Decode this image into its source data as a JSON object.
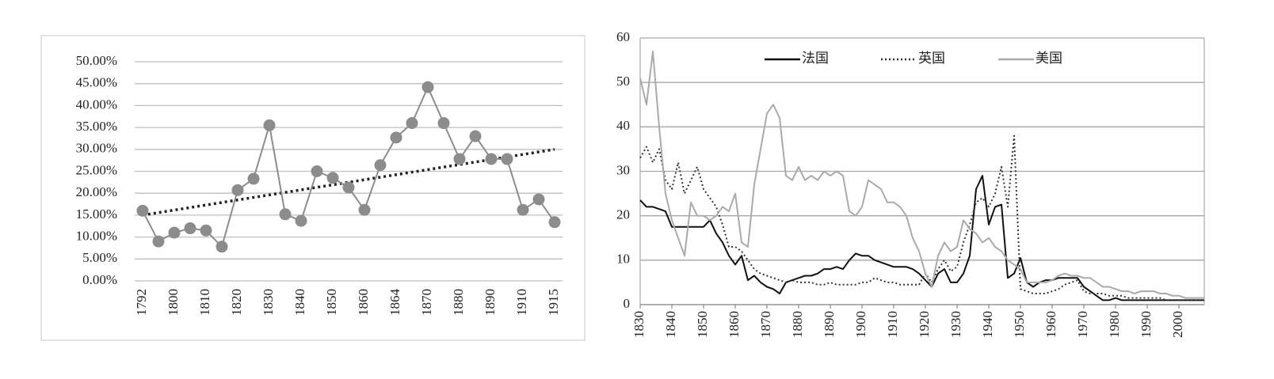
{
  "chart_data": [
    {
      "type": "line",
      "categories": [
        "1792",
        null,
        "1800",
        null,
        "1810",
        null,
        "1820",
        null,
        "1830",
        null,
        "1840",
        null,
        "1850",
        null,
        "1860",
        null,
        "1864",
        null,
        "1870",
        null,
        "1880",
        null,
        "1890",
        null,
        "1910",
        null,
        "1915"
      ],
      "series": [
        {
          "color": "#8c8c8c",
          "marker": "circle",
          "style": "solid",
          "values": [
            16,
            9,
            11,
            12,
            11.5,
            7.8,
            20.7,
            23.3,
            35.5,
            15.2,
            13.7,
            25,
            23.5,
            21.3,
            16.2,
            26.4,
            32.7,
            36,
            44.2,
            36,
            27.8,
            33,
            27.8,
            27.8,
            16.2,
            18.6,
            13.4
          ]
        }
      ],
      "trendline": {
        "values": [
          15,
          30
        ],
        "color": "#222222",
        "style": "dotted"
      },
      "ylim": [
        0,
        50
      ],
      "yticks": [
        {
          "value": 0,
          "label": "0.00%"
        },
        {
          "value": 5,
          "label": "5.00%"
        },
        {
          "value": 10,
          "label": "10.00%"
        },
        {
          "value": 15,
          "label": "15.00%"
        },
        {
          "value": 20,
          "label": "20.00%"
        },
        {
          "value": 25,
          "label": "25.00%"
        },
        {
          "value": 30,
          "label": "30.00%"
        },
        {
          "value": 35,
          "label": "35.00%"
        },
        {
          "value": 40,
          "label": "40.00%"
        },
        {
          "value": 45,
          "label": "45.00%"
        },
        {
          "value": 50,
          "label": "50.00%"
        }
      ],
      "grid": true
    },
    {
      "type": "line",
      "x": [
        1830,
        1832,
        1834,
        1836,
        1838,
        1840,
        1842,
        1844,
        1846,
        1848,
        1850,
        1852,
        1854,
        1856,
        1858,
        1860,
        1862,
        1864,
        1866,
        1868,
        1870,
        1872,
        1874,
        1876,
        1878,
        1880,
        1882,
        1884,
        1886,
        1888,
        1890,
        1892,
        1894,
        1896,
        1898,
        1900,
        1902,
        1904,
        1906,
        1908,
        1910,
        1912,
        1914,
        1916,
        1918,
        1920,
        1922,
        1924,
        1926,
        1928,
        1930,
        1932,
        1934,
        1936,
        1938,
        1940,
        1942,
        1944,
        1946,
        1948,
        1950,
        1952,
        1954,
        1956,
        1958,
        1960,
        1962,
        1964,
        1966,
        1968,
        1970,
        1972,
        1974,
        1976,
        1978,
        1980,
        1982,
        1984,
        1986,
        1988,
        1990,
        1992,
        1994,
        1996,
        1998,
        2000,
        2002,
        2004,
        2006,
        2008
      ],
      "series": [
        {
          "name": "法国",
          "color": "#111111",
          "style": "solid",
          "values": [
            23.5,
            22,
            22,
            21.5,
            21,
            17.5,
            17.5,
            17.5,
            17.5,
            17.5,
            17.5,
            19,
            16,
            14,
            11,
            9,
            11,
            5.5,
            6.5,
            5,
            4,
            3.5,
            2.5,
            5,
            5.5,
            6,
            6.5,
            6.5,
            7,
            8,
            8,
            8.5,
            8,
            10,
            11.5,
            11,
            11,
            10,
            9.5,
            9,
            8.5,
            8.5,
            8.5,
            8,
            7,
            5.5,
            4,
            7,
            8,
            5,
            5,
            7,
            11,
            26,
            29,
            18,
            22,
            22.5,
            6,
            7,
            10.5,
            5,
            4,
            5,
            5.5,
            5.5,
            6,
            6,
            6,
            6,
            4,
            3,
            2,
            1,
            1,
            1.5,
            1,
            1,
            1,
            1,
            1,
            1,
            1,
            1,
            1,
            1,
            1,
            1,
            1,
            1
          ]
        },
        {
          "name": "英国",
          "color": "#333333",
          "style": "dotted",
          "values": [
            33,
            35.5,
            32,
            35,
            28,
            26,
            32,
            25,
            28,
            31,
            26,
            24,
            22,
            18,
            13,
            13,
            12,
            10,
            8,
            7,
            6.5,
            6,
            5.5,
            5,
            5.5,
            5,
            5,
            5,
            4.5,
            4.5,
            5,
            4.5,
            4.5,
            4.5,
            4.5,
            5,
            5,
            6,
            5.5,
            5,
            5,
            4.5,
            4.5,
            4.5,
            4.5,
            7,
            5,
            8,
            10,
            7.5,
            8.5,
            14,
            18,
            23,
            24,
            22,
            25,
            31,
            22,
            38,
            3.5,
            3,
            2.5,
            2.5,
            2.5,
            3,
            3.5,
            4.5,
            5,
            5.5,
            3,
            2.5,
            2.5,
            2.5,
            2,
            2,
            2,
            1.5,
            1.5,
            1.5,
            1.5,
            1.5,
            1.5,
            1,
            1,
            1,
            1,
            1,
            1,
            1
          ]
        },
        {
          "name": "美国",
          "color": "#aaaaaa",
          "style": "solid",
          "values": [
            51,
            45,
            57,
            40,
            25,
            19,
            15,
            11,
            23,
            20,
            20,
            19,
            20,
            22,
            21,
            25,
            14,
            13,
            27,
            35,
            43,
            45,
            42,
            29,
            28,
            31,
            28,
            29,
            28,
            30,
            29,
            30,
            29,
            21,
            20,
            22,
            28,
            27,
            26,
            23,
            23,
            22,
            20,
            15,
            12,
            7,
            4,
            11,
            14,
            12,
            13,
            19,
            17,
            16,
            14,
            15,
            13,
            12,
            10,
            9,
            8,
            5,
            5,
            5,
            5,
            5.5,
            6.5,
            7,
            6.5,
            6.5,
            6,
            6,
            5,
            4,
            4,
            3.5,
            3,
            3,
            2.5,
            3,
            3,
            3,
            2.5,
            2.5,
            2,
            2,
            1.5,
            1.5,
            1.5,
            1.5
          ]
        }
      ],
      "xlim": [
        1830,
        2008
      ],
      "xticks": [
        1830,
        1840,
        1850,
        1860,
        1870,
        1880,
        1890,
        1900,
        1910,
        1920,
        1930,
        1940,
        1950,
        1960,
        1970,
        1980,
        1990,
        2000
      ],
      "ylim": [
        0,
        60
      ],
      "yticks": [
        0,
        10,
        20,
        30,
        40,
        50,
        60
      ],
      "grid": true,
      "legend": "top"
    }
  ]
}
